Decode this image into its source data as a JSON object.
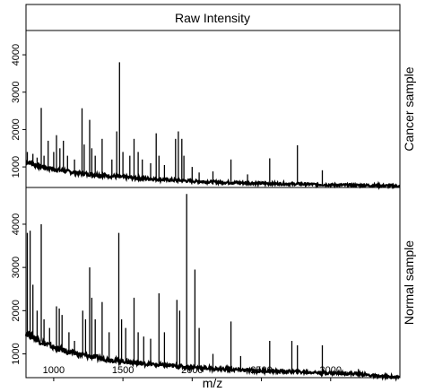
{
  "chart_data": {
    "type": "line",
    "title": "Raw Intensity",
    "xlabel": "m/z",
    "ylabel": "",
    "xlim": [
      800,
      3500
    ],
    "x_ticks": [
      1000,
      1500,
      2000,
      2500,
      3000
    ],
    "grid": false,
    "legend": "none",
    "line_color": "#000000",
    "panels": [
      {
        "name": "Cancer sample",
        "ylim": [
          450,
          4650
        ],
        "y_ticks": [
          1000,
          2000,
          3000,
          4000
        ],
        "baseline": [
          [
            800,
            1150
          ],
          [
            900,
            1020
          ],
          [
            1000,
            940
          ],
          [
            1100,
            880
          ],
          [
            1200,
            830
          ],
          [
            1300,
            790
          ],
          [
            1400,
            760
          ],
          [
            1500,
            730
          ],
          [
            1600,
            700
          ],
          [
            1700,
            680
          ],
          [
            1800,
            660
          ],
          [
            1900,
            640
          ],
          [
            2000,
            620
          ],
          [
            2200,
            590
          ],
          [
            2400,
            570
          ],
          [
            2600,
            550
          ],
          [
            2800,
            540
          ],
          [
            3000,
            520
          ],
          [
            3200,
            510
          ],
          [
            3500,
            490
          ]
        ],
        "peaks": [
          [
            810,
            1400
          ],
          [
            850,
            1350
          ],
          [
            880,
            1250
          ],
          [
            910,
            2580
          ],
          [
            930,
            1300
          ],
          [
            960,
            1700
          ],
          [
            1000,
            1400
          ],
          [
            1020,
            1850
          ],
          [
            1045,
            1500
          ],
          [
            1070,
            1700
          ],
          [
            1100,
            1300
          ],
          [
            1150,
            1200
          ],
          [
            1205,
            2570
          ],
          [
            1220,
            1600
          ],
          [
            1260,
            2260
          ],
          [
            1275,
            1500
          ],
          [
            1300,
            1300
          ],
          [
            1350,
            1750
          ],
          [
            1420,
            1200
          ],
          [
            1455,
            1950
          ],
          [
            1475,
            3800
          ],
          [
            1500,
            1400
          ],
          [
            1550,
            1300
          ],
          [
            1580,
            1750
          ],
          [
            1610,
            1400
          ],
          [
            1640,
            1200
          ],
          [
            1700,
            1100
          ],
          [
            1740,
            1900
          ],
          [
            1760,
            1300
          ],
          [
            1800,
            1050
          ],
          [
            1880,
            1750
          ],
          [
            1900,
            1950
          ],
          [
            1925,
            1750
          ],
          [
            1940,
            1300
          ],
          [
            2000,
            1000
          ],
          [
            2050,
            850
          ],
          [
            2150,
            880
          ],
          [
            2280,
            1200
          ],
          [
            2400,
            800
          ],
          [
            2560,
            1230
          ],
          [
            2760,
            1580
          ],
          [
            2940,
            910
          ],
          [
            3240,
            560
          ]
        ]
      },
      {
        "name": "Normal sample",
        "ylim": [
          450,
          4850
        ],
        "y_ticks": [
          1000,
          2000,
          3000,
          4000
        ],
        "baseline": [
          [
            800,
            1500
          ],
          [
            900,
            1300
          ],
          [
            1000,
            1150
          ],
          [
            1100,
            1050
          ],
          [
            1200,
            980
          ],
          [
            1300,
            920
          ],
          [
            1400,
            870
          ],
          [
            1500,
            830
          ],
          [
            1600,
            790
          ],
          [
            1700,
            760
          ],
          [
            1800,
            730
          ],
          [
            1900,
            710
          ],
          [
            2000,
            690
          ],
          [
            2200,
            650
          ],
          [
            2400,
            620
          ],
          [
            2600,
            600
          ],
          [
            2800,
            580
          ],
          [
            3000,
            560
          ],
          [
            3200,
            540
          ],
          [
            3350,
            480
          ],
          [
            3500,
            460
          ]
        ],
        "peaks": [
          [
            810,
            3800
          ],
          [
            830,
            3850
          ],
          [
            850,
            2600
          ],
          [
            880,
            2000
          ],
          [
            910,
            4000
          ],
          [
            930,
            1800
          ],
          [
            970,
            1600
          ],
          [
            1020,
            2100
          ],
          [
            1040,
            2050
          ],
          [
            1060,
            1900
          ],
          [
            1110,
            1500
          ],
          [
            1150,
            1300
          ],
          [
            1210,
            2000
          ],
          [
            1230,
            1800
          ],
          [
            1260,
            3000
          ],
          [
            1275,
            2300
          ],
          [
            1300,
            1800
          ],
          [
            1350,
            2200
          ],
          [
            1400,
            1500
          ],
          [
            1470,
            3800
          ],
          [
            1490,
            1800
          ],
          [
            1520,
            1600
          ],
          [
            1580,
            2300
          ],
          [
            1610,
            1500
          ],
          [
            1650,
            1400
          ],
          [
            1700,
            1350
          ],
          [
            1760,
            2400
          ],
          [
            1800,
            1500
          ],
          [
            1890,
            2250
          ],
          [
            1910,
            2000
          ],
          [
            1960,
            4700
          ],
          [
            2020,
            2950
          ],
          [
            2050,
            1600
          ],
          [
            2150,
            1000
          ],
          [
            2280,
            1750
          ],
          [
            2350,
            950
          ],
          [
            2560,
            1300
          ],
          [
            2720,
            1300
          ],
          [
            2760,
            1200
          ],
          [
            2940,
            1200
          ],
          [
            3200,
            650
          ]
        ]
      }
    ]
  }
}
